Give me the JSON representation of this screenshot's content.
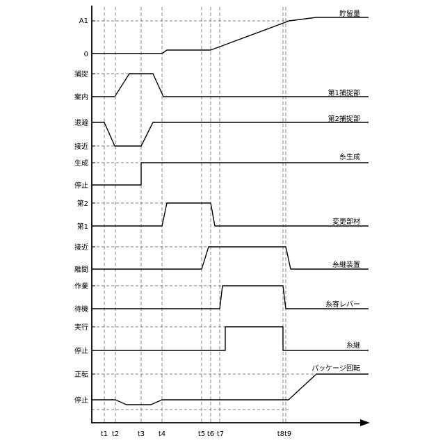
{
  "time_marks": [
    "t1",
    "t2",
    "t3",
    "t4",
    "t5",
    "t6",
    "t7",
    "t8",
    "t9"
  ],
  "time_marks_text": [
    "t1",
    "t2",
    "t3",
    "t4",
    "t5",
    "t6",
    "t7",
    "t8t9"
  ],
  "signals": [
    {
      "key": "storage",
      "name": "貯留量",
      "levels": [
        "A1",
        "0"
      ]
    },
    {
      "key": "capture1",
      "name": "第1捕捉部",
      "levels": [
        "捕捉",
        "案内"
      ]
    },
    {
      "key": "capture2",
      "name": "第2捕捉部",
      "levels": [
        "退避",
        "接近"
      ]
    },
    {
      "key": "yarngen",
      "name": "糸生成",
      "levels": [
        "生成",
        "停止"
      ]
    },
    {
      "key": "changer",
      "name": "変更部材",
      "levels": [
        "第2",
        "第1"
      ]
    },
    {
      "key": "joiner",
      "name": "糸継装置",
      "levels": [
        "接近",
        "離間"
      ]
    },
    {
      "key": "lever",
      "name": "糸寄レバー",
      "levels": [
        "作業",
        "待機"
      ]
    },
    {
      "key": "splice",
      "name": "糸継",
      "levels": [
        "実行",
        "停止"
      ]
    },
    {
      "key": "rotation",
      "name": "パッケージ回転",
      "levels": [
        "正転",
        "停止"
      ]
    }
  ]
}
